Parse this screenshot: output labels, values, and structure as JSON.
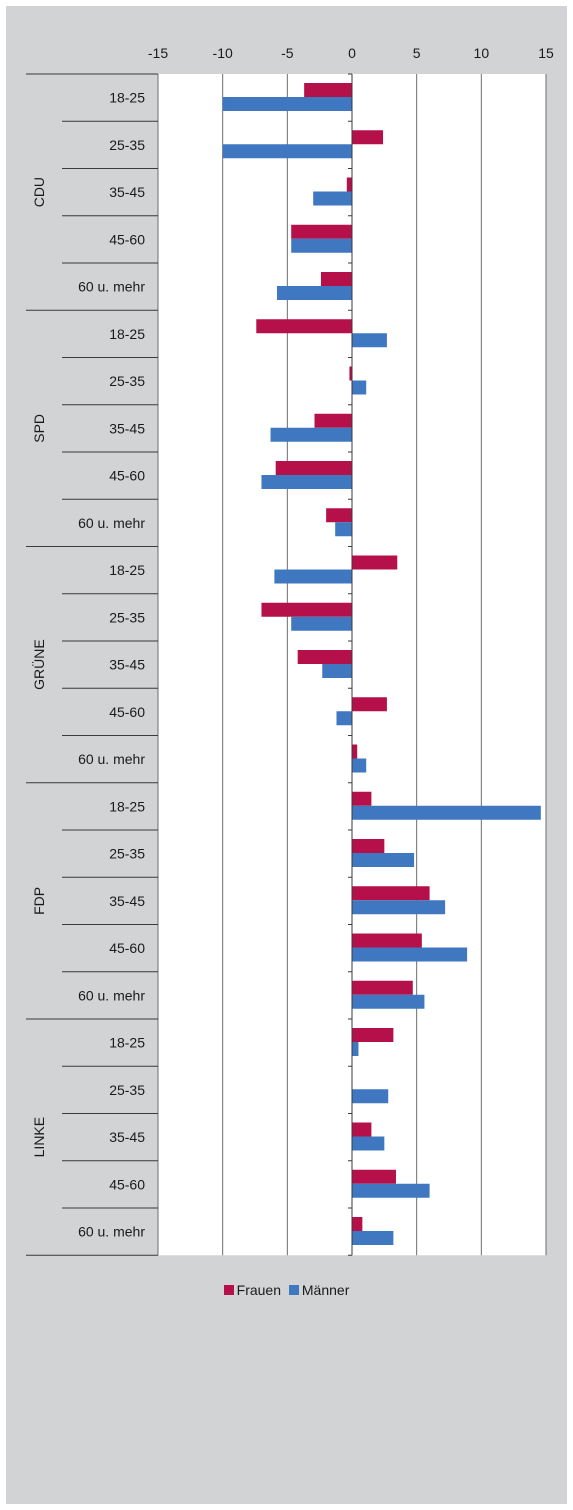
{
  "chart_data": {
    "type": "bar",
    "orientation": "horizontal",
    "title": "",
    "xlabel": "",
    "ylabel": "",
    "xlim": [
      -15,
      15
    ],
    "x_ticks": [
      "-15",
      "-10",
      "-5",
      "0",
      "5",
      "10",
      "15"
    ],
    "x_tick_values": [
      -15,
      -10,
      -5,
      0,
      5,
      10,
      15
    ],
    "grid": true,
    "legend_position": "bottom",
    "groups": [
      {
        "name": "CDU",
        "categories": [
          "18-25",
          "25-35",
          "35-45",
          "45-60",
          "60 u. mehr"
        ]
      },
      {
        "name": "SPD",
        "categories": [
          "18-25",
          "25-35",
          "35-45",
          "45-60",
          "60 u. mehr"
        ]
      },
      {
        "name": "GRÜNE",
        "categories": [
          "18-25",
          "25-35",
          "35-45",
          "45-60",
          "60 u. mehr"
        ]
      },
      {
        "name": "FDP",
        "categories": [
          "18-25",
          "25-35",
          "35-45",
          "45-60",
          "60 u. mehr"
        ]
      },
      {
        "name": "LINKE",
        "categories": [
          "18-25",
          "25-35",
          "35-45",
          "45-60",
          "60 u. mehr"
        ]
      }
    ],
    "series": [
      {
        "name": "Frauen",
        "color": "#b5104a",
        "values": [
          -3.7,
          2.4,
          -0.4,
          -4.7,
          -2.4,
          -7.4,
          -0.2,
          -2.9,
          -5.9,
          -2.0,
          3.5,
          -7.0,
          -4.2,
          2.7,
          0.4,
          1.5,
          2.5,
          6.0,
          5.4,
          4.7,
          3.2,
          0.0,
          1.5,
          3.4,
          0.8
        ]
      },
      {
        "name": "Männer",
        "color": "#3f78c0",
        "values": [
          -10.0,
          -10.0,
          -3.0,
          -4.7,
          -5.8,
          2.7,
          1.1,
          -6.3,
          -7.0,
          -1.3,
          -6.0,
          -4.7,
          -2.3,
          -1.2,
          1.1,
          14.6,
          4.8,
          7.2,
          8.9,
          5.6,
          0.5,
          2.8,
          2.5,
          6.0,
          3.2
        ]
      }
    ]
  }
}
